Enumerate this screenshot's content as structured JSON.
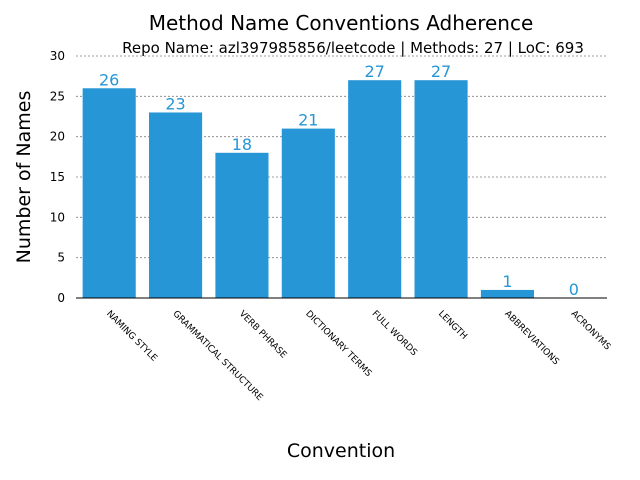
{
  "chart_data": {
    "type": "bar",
    "title": "Method Name Conventions Adherence",
    "subtitle": "Repo Name: azl397985856/leetcode | Methods: 27 | LoC: 693",
    "xlabel": "Convention",
    "ylabel": "Number of Names",
    "categories": [
      "NAMING STYLE",
      "GRAMMATICAL STRUCTURE",
      "VERB PHRASE",
      "DICTIONARY TERMS",
      "FULL WORDS",
      "LENGTH",
      "ABBREVIATIONS",
      "ACRONYMS"
    ],
    "values": [
      26,
      23,
      18,
      21,
      27,
      27,
      1,
      0
    ],
    "ylim": [
      0,
      30
    ],
    "yticks": [
      0,
      5,
      10,
      15,
      20,
      25,
      30
    ],
    "grid": true,
    "bar_color": "#2796d6",
    "label_color": "#2796d6"
  }
}
